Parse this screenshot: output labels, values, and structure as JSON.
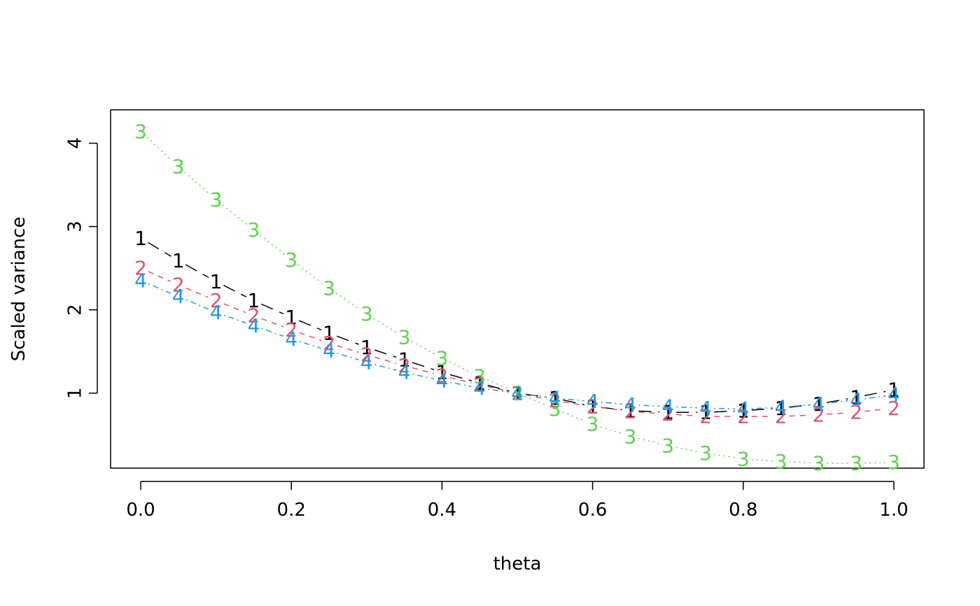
{
  "chart_data": {
    "type": "line",
    "title": "",
    "xlabel": "theta",
    "ylabel": "Scaled variance",
    "xlim": [
      -0.04,
      1.04
    ],
    "ylim": [
      0.1,
      4.4
    ],
    "xticks": [
      0.0,
      0.2,
      0.4,
      0.6,
      0.8,
      1.0
    ],
    "xtick_labels": [
      "0.0",
      "0.2",
      "0.4",
      "0.6",
      "0.8",
      "1.0"
    ],
    "yticks": [
      1,
      2,
      3,
      4
    ],
    "ytick_labels": [
      "1",
      "2",
      "3",
      "4"
    ],
    "grid": false,
    "legend": "none",
    "x": [
      0.0,
      0.05,
      0.1,
      0.15,
      0.2,
      0.25,
      0.3,
      0.35,
      0.4,
      0.45,
      0.5,
      0.55,
      0.6,
      0.65,
      0.7,
      0.75,
      0.8,
      0.85,
      0.9,
      0.95,
      1.0
    ],
    "series": [
      {
        "label": "1",
        "color": "#000000",
        "linestyle": "longdash",
        "values": [
          2.86,
          2.59,
          2.34,
          2.11,
          1.91,
          1.72,
          1.55,
          1.4,
          1.25,
          1.12,
          1.0,
          0.94,
          0.84,
          0.79,
          0.77,
          0.77,
          0.79,
          0.82,
          0.87,
          0.95,
          1.04
        ]
      },
      {
        "label": "2",
        "color": "#df536b",
        "linestyle": "dashed",
        "values": [
          2.5,
          2.3,
          2.11,
          1.93,
          1.76,
          1.6,
          1.46,
          1.33,
          1.21,
          1.1,
          1.0,
          0.91,
          0.84,
          0.78,
          0.75,
          0.72,
          0.72,
          0.72,
          0.74,
          0.77,
          0.82
        ]
      },
      {
        "label": "3",
        "color": "#61d04f",
        "linestyle": "dotted",
        "values": [
          4.14,
          3.72,
          3.32,
          2.96,
          2.6,
          2.26,
          1.95,
          1.67,
          1.42,
          1.2,
          1.0,
          0.81,
          0.63,
          0.48,
          0.37,
          0.28,
          0.21,
          0.18,
          0.16,
          0.16,
          0.17
        ]
      },
      {
        "label": "4",
        "color": "#2297e6",
        "linestyle": "dotdash",
        "values": [
          2.35,
          2.16,
          1.97,
          1.81,
          1.65,
          1.51,
          1.37,
          1.25,
          1.15,
          1.06,
          1.0,
          0.94,
          0.9,
          0.86,
          0.84,
          0.82,
          0.81,
          0.83,
          0.87,
          0.92,
          0.98
        ]
      }
    ]
  }
}
